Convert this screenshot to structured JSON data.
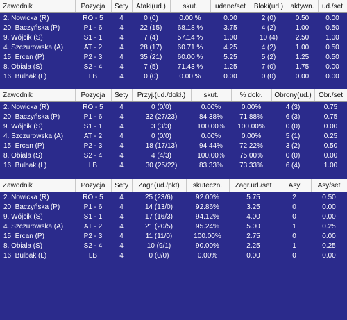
{
  "tables": [
    {
      "headers": [
        "Zawodnik",
        "Pozycja",
        "Sety",
        "Ataki(ud.)",
        "skut.",
        "udane/set",
        "Bloki(ud.)",
        "aktywn.",
        "ud./set"
      ],
      "rows": [
        [
          "2. Nowicka (R)",
          "RO - 5",
          "4",
          "0 (0)",
          "0.00 %",
          "0.00",
          "2 (0)",
          "0.50",
          "0.00"
        ],
        [
          "20. Baczyńska (P)",
          "P1 - 6",
          "4",
          "22 (15)",
          "68.18 %",
          "3.75",
          "4 (2)",
          "1.00",
          "0.50"
        ],
        [
          "9. Wójcik (S)",
          "S1 - 1",
          "4",
          "7 (4)",
          "57.14 %",
          "1.00",
          "10 (4)",
          "2.50",
          "1.00"
        ],
        [
          "4. Szczurowska (A)",
          "AT - 2",
          "4",
          "28 (17)",
          "60.71 %",
          "4.25",
          "4 (2)",
          "1.00",
          "0.50"
        ],
        [
          "15. Ercan (P)",
          "P2 - 3",
          "4",
          "35 (21)",
          "60.00 %",
          "5.25",
          "5 (2)",
          "1.25",
          "0.50"
        ],
        [
          "8. Obiala (S)",
          "S2 - 4",
          "4",
          "7 (5)",
          "71.43 %",
          "1.25",
          "7 (0)",
          "1.75",
          "0.00"
        ],
        [
          "16. Bulbak (L)",
          "LB",
          "4",
          "0 (0)",
          "0.00 %",
          "0.00",
          "0 (0)",
          "0.00",
          "0.00"
        ]
      ]
    },
    {
      "headers": [
        "Zawodnik",
        "Pozycja",
        "Sety",
        "Przyj.(ud./dokł.)",
        "skut.",
        "% dokł.",
        "Obrony(ud.)",
        "Obr./set"
      ],
      "rows": [
        [
          "2. Nowicka (R)",
          "RO - 5",
          "4",
          "0 (0/0)",
          "0.00%",
          "0.00%",
          "4 (3)",
          "0.75"
        ],
        [
          "20. Baczyńska (P)",
          "P1 - 6",
          "4",
          "32 (27/23)",
          "84.38%",
          "71.88%",
          "6 (3)",
          "0.75"
        ],
        [
          "9. Wójcik (S)",
          "S1 - 1",
          "4",
          "3 (3/3)",
          "100.00%",
          "100.00%",
          "0 (0)",
          "0.00"
        ],
        [
          "4. Szczurowska (A)",
          "AT - 2",
          "4",
          "0 (0/0)",
          "0.00%",
          "0.00%",
          "5 (1)",
          "0.25"
        ],
        [
          "15. Ercan (P)",
          "P2 - 3",
          "4",
          "18 (17/13)",
          "94.44%",
          "72.22%",
          "3 (2)",
          "0.50"
        ],
        [
          "8. Obiala (S)",
          "S2 - 4",
          "4",
          "4 (4/3)",
          "100.00%",
          "75.00%",
          "0 (0)",
          "0.00"
        ],
        [
          "16. Bulbak (L)",
          "LB",
          "4",
          "30 (25/22)",
          "83.33%",
          "73.33%",
          "6 (4)",
          "1.00"
        ]
      ]
    },
    {
      "headers": [
        "Zawodnik",
        "Pozycja",
        "Sety",
        "Zagr.(ud./pkt)",
        "skuteczn.",
        "Zagr.ud./set",
        "Asy",
        "Asy/set"
      ],
      "rows": [
        [
          "2. Nowicka (R)",
          "RO - 5",
          "4",
          "25 (23/6)",
          "92.00%",
          "5.75",
          "2",
          "0.50"
        ],
        [
          "20. Baczyńska (P)",
          "P1 - 6",
          "4",
          "14 (13/0)",
          "92.86%",
          "3.25",
          "0",
          "0.00"
        ],
        [
          "9. Wójcik (S)",
          "S1 - 1",
          "4",
          "17 (16/3)",
          "94.12%",
          "4.00",
          "0",
          "0.00"
        ],
        [
          "4. Szczurowska (A)",
          "AT - 2",
          "4",
          "21 (20/5)",
          "95.24%",
          "5.00",
          "1",
          "0.25"
        ],
        [
          "15. Ercan (P)",
          "P2 - 3",
          "4",
          "11 (11/0)",
          "100.00%",
          "2.75",
          "0",
          "0.00"
        ],
        [
          "8. Obiala (S)",
          "S2 - 4",
          "4",
          "10 (9/1)",
          "90.00%",
          "2.25",
          "1",
          "0.25"
        ],
        [
          "16. Bulbak (L)",
          "LB",
          "4",
          "0 (0/0)",
          "0.00%",
          "0.00",
          "0",
          "0.00"
        ]
      ]
    }
  ]
}
